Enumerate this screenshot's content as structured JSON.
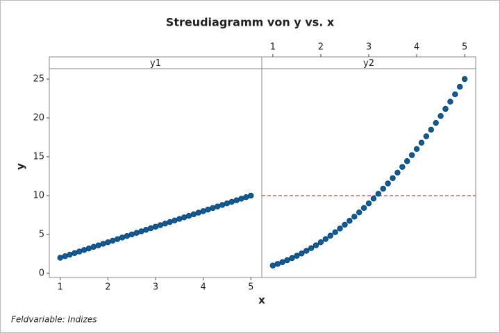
{
  "title": "Streudiagramm von y vs. x",
  "y_label": "y",
  "x_label": "x",
  "footnote": "Feldvariable: Indizes",
  "chart_data": [
    {
      "type": "scatter",
      "panel_label": "y1",
      "color": "#0b5c99",
      "x_axis": "bottom",
      "x": [
        1,
        1.1,
        1.2,
        1.3,
        1.4,
        1.5,
        1.6,
        1.7,
        1.8,
        1.9,
        2,
        2.1,
        2.2,
        2.3,
        2.4,
        2.5,
        2.6,
        2.7,
        2.8,
        2.9,
        3,
        3.1,
        3.2,
        3.3,
        3.4,
        3.5,
        3.6,
        3.7,
        3.8,
        3.9,
        4,
        4.1,
        4.2,
        4.3,
        4.4,
        4.5,
        4.6,
        4.7,
        4.8,
        4.9,
        5
      ],
      "values": [
        2,
        2.2,
        2.4,
        2.6,
        2.8,
        3,
        3.2,
        3.4,
        3.6,
        3.8,
        4,
        4.2,
        4.4,
        4.6,
        4.8,
        5,
        5.2,
        5.4,
        5.6,
        5.8,
        6,
        6.2,
        6.4,
        6.6,
        6.8,
        7,
        7.2,
        7.4,
        7.6,
        7.8,
        8,
        8.2,
        8.4,
        8.6,
        8.8,
        9,
        9.2,
        9.4,
        9.6,
        9.8,
        10
      ],
      "xlim": [
        0.77,
        5.23
      ],
      "xticks": [
        1,
        2,
        3,
        4,
        5
      ],
      "ylim": [
        -0.54,
        26.34
      ],
      "yticks": [
        0,
        5,
        10,
        15,
        20,
        25
      ]
    },
    {
      "type": "scatter",
      "panel_label": "y2",
      "color": "#0b5c99",
      "x_axis": "top",
      "x": [
        1,
        1.1,
        1.2,
        1.3,
        1.4,
        1.5,
        1.6,
        1.7,
        1.8,
        1.9,
        2,
        2.1,
        2.2,
        2.3,
        2.4,
        2.5,
        2.6,
        2.7,
        2.8,
        2.9,
        3,
        3.1,
        3.2,
        3.3,
        3.4,
        3.5,
        3.6,
        3.7,
        3.8,
        3.9,
        4,
        4.1,
        4.2,
        4.3,
        4.4,
        4.5,
        4.6,
        4.7,
        4.8,
        4.9,
        5
      ],
      "values": [
        1,
        1.21,
        1.44,
        1.69,
        1.96,
        2.25,
        2.56,
        2.89,
        3.24,
        3.61,
        4,
        4.41,
        4.84,
        5.29,
        5.76,
        6.25,
        6.76,
        7.29,
        7.84,
        8.41,
        9,
        9.61,
        10.24,
        10.89,
        11.56,
        12.25,
        12.96,
        13.69,
        14.44,
        15.21,
        16,
        16.81,
        17.64,
        18.49,
        19.36,
        20.25,
        21.16,
        22.09,
        23.04,
        24.01,
        25
      ],
      "xlim": [
        0.77,
        5.23
      ],
      "xticks": [
        1,
        2,
        3,
        4,
        5
      ],
      "ylim": [
        -0.54,
        26.34
      ],
      "reference_line": {
        "value": 10,
        "color": "#a02020",
        "style": "dashed"
      }
    }
  ]
}
